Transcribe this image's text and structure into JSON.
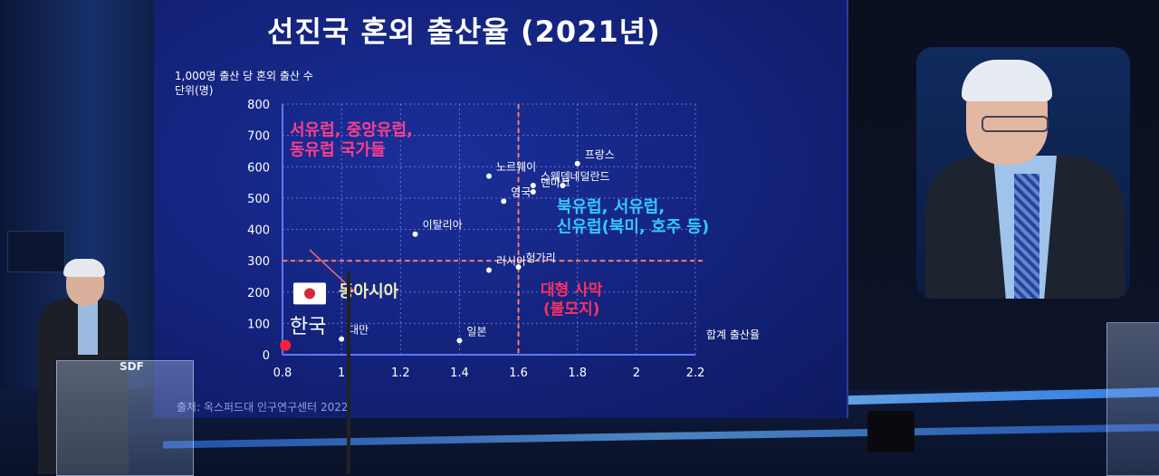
{
  "slide": {
    "title": "선진국 혼외 출산율 (2021년)",
    "ylabel_line1": "1,000명 출산 당 혼외 출산 수",
    "ylabel_line2": "단위(명)",
    "source": "출처: 옥스퍼드대 인구연구센터 2022",
    "podium_logo": "SDF"
  },
  "chart_data": {
    "type": "scatter",
    "title": "선진국 혼외 출산율 (2021년)",
    "xlabel": "합계 출산율",
    "ylabel": "1,000명 출산 당 혼외 출산 수 단위(명)",
    "xlim": [
      0.8,
      2.2
    ],
    "ylim": [
      0,
      800
    ],
    "x_ticks": [
      "0.8",
      "1",
      "1.2",
      "1.4",
      "1.6",
      "1.8",
      "2",
      "2.2"
    ],
    "y_ticks": [
      "0",
      "100",
      "200",
      "300",
      "400",
      "500",
      "600",
      "700",
      "800"
    ],
    "grid": true,
    "reference_lines": {
      "x": 1.6,
      "y": 300
    },
    "points": [
      {
        "label": "프랑스",
        "x": 1.8,
        "y": 610
      },
      {
        "label": "노르웨이",
        "x": 1.5,
        "y": 570
      },
      {
        "label": "스웨덴",
        "x": 1.65,
        "y": 540
      },
      {
        "label": "네덜란드",
        "x": 1.75,
        "y": 540
      },
      {
        "label": "덴마크",
        "x": 1.65,
        "y": 520
      },
      {
        "label": "영국",
        "x": 1.55,
        "y": 490
      },
      {
        "label": "이탈리아",
        "x": 1.25,
        "y": 385
      },
      {
        "label": "러시아",
        "x": 1.5,
        "y": 270
      },
      {
        "label": "헝가리",
        "x": 1.6,
        "y": 280
      },
      {
        "label": "대만",
        "x": 1.0,
        "y": 50
      },
      {
        "label": "일본",
        "x": 1.4,
        "y": 45
      },
      {
        "label": "한국",
        "x": 0.81,
        "y": 30,
        "highlight": true
      }
    ],
    "annotations": [
      {
        "text": "서유럽, 중앙유럽, 동유럽 국가들",
        "line1": "서유럽, 중앙유럽,",
        "line2": "동유럽 국가들",
        "color": "#ff3d8d"
      },
      {
        "text": "북유럽, 서유럽, 신유럽(북미, 호주 등)",
        "line1": "북유럽, 서유럽,",
        "line2": "신유럽(북미, 호주 등)",
        "color": "#35c8ff"
      },
      {
        "text": "동아시아",
        "line1": "동아시아",
        "color": "#f2f2b8"
      },
      {
        "text": "대형 사막 (불모지)",
        "line1": "대형 사막",
        "line2": "(불모지)",
        "color": "#ff2f5f"
      }
    ],
    "korea_label": "한국"
  },
  "colors": {
    "point": "#ffffff",
    "korea_point": "#ff1f3a",
    "grid": "#6f86ff",
    "ref_line": "#ff7a6a",
    "axis": "#5f78ff"
  }
}
